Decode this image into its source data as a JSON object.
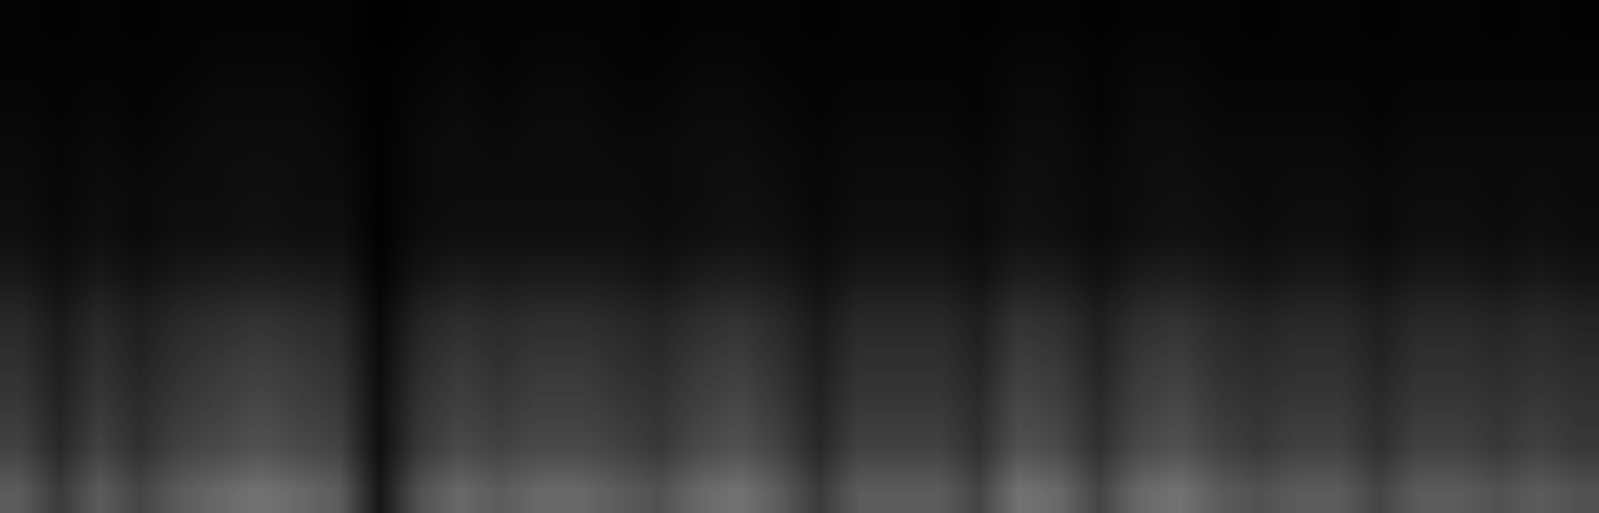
{
  "chart_data": {
    "type": "heatmap",
    "tick_labels": false,
    "color": "gray",
    "color_range": [
      0,
      100
    ],
    "cells": [
      [
        2,
        1,
        2,
        1,
        2,
        2,
        2,
        2,
        2,
        0,
        1,
        2,
        2,
        2,
        2,
        2,
        1,
        2,
        2,
        2,
        1,
        2,
        2,
        2,
        1,
        2,
        2,
        1,
        2,
        2,
        2,
        1,
        2,
        2,
        1,
        2,
        2,
        1,
        2,
        1
      ],
      [
        2,
        2,
        2,
        2,
        2,
        3,
        3,
        3,
        2,
        1,
        2,
        3,
        2,
        3,
        3,
        2,
        2,
        3,
        3,
        2,
        2,
        2,
        2,
        2,
        2,
        3,
        3,
        2,
        3,
        3,
        2,
        2,
        2,
        2,
        2,
        2,
        2,
        2,
        2,
        2
      ],
      [
        3,
        2,
        3,
        2,
        3,
        4,
        4,
        4,
        3,
        1,
        3,
        4,
        3,
        4,
        4,
        3,
        3,
        4,
        4,
        3,
        2,
        3,
        3,
        3,
        2,
        4,
        4,
        2,
        4,
        4,
        3,
        3,
        3,
        3,
        2,
        3,
        3,
        3,
        3,
        3
      ],
      [
        4,
        3,
        4,
        3,
        4,
        5,
        5,
        5,
        4,
        1,
        4,
        5,
        4,
        5,
        5,
        4,
        4,
        5,
        5,
        4,
        3,
        4,
        4,
        4,
        3,
        5,
        5,
        3,
        5,
        5,
        4,
        4,
        4,
        4,
        3,
        4,
        4,
        4,
        4,
        4
      ],
      [
        5,
        3,
        5,
        4,
        5,
        5,
        6,
        5,
        5,
        1,
        4,
        5,
        5,
        5,
        5,
        5,
        4,
        5,
        6,
        5,
        3,
        5,
        5,
        5,
        4,
        6,
        5,
        4,
        5,
        6,
        5,
        4,
        5,
        5,
        4,
        5,
        5,
        4,
        5,
        4
      ],
      [
        6,
        4,
        6,
        4,
        6,
        6,
        7,
        6,
        6,
        1,
        5,
        6,
        6,
        6,
        6,
        6,
        5,
        6,
        7,
        6,
        4,
        6,
        6,
        6,
        4,
        7,
        6,
        4,
        6,
        7,
        6,
        5,
        6,
        6,
        4,
        6,
        6,
        5,
        6,
        5
      ],
      [
        10,
        6,
        10,
        7,
        10,
        11,
        12,
        11,
        10,
        2,
        8,
        11,
        10,
        11,
        11,
        10,
        8,
        11,
        12,
        10,
        6,
        10,
        10,
        10,
        7,
        12,
        11,
        7,
        11,
        12,
        10,
        8,
        10,
        10,
        7,
        10,
        10,
        8,
        10,
        8
      ],
      [
        16,
        10,
        16,
        12,
        16,
        18,
        20,
        18,
        16,
        4,
        14,
        18,
        16,
        18,
        18,
        16,
        14,
        18,
        20,
        16,
        10,
        16,
        16,
        16,
        12,
        20,
        18,
        12,
        18,
        20,
        16,
        14,
        16,
        16,
        12,
        16,
        16,
        14,
        16,
        14
      ],
      [
        19,
        12,
        19,
        14,
        19,
        22,
        24,
        22,
        19,
        5,
        17,
        22,
        19,
        22,
        22,
        19,
        17,
        22,
        24,
        19,
        12,
        19,
        19,
        19,
        14,
        24,
        22,
        14,
        22,
        24,
        19,
        17,
        19,
        19,
        14,
        19,
        19,
        17,
        19,
        17
      ],
      [
        22,
        14,
        22,
        17,
        22,
        25,
        28,
        25,
        22,
        6,
        20,
        25,
        22,
        25,
        25,
        22,
        20,
        25,
        28,
        22,
        14,
        22,
        22,
        22,
        17,
        28,
        25,
        17,
        25,
        28,
        22,
        20,
        22,
        22,
        17,
        22,
        22,
        20,
        22,
        20
      ],
      [
        26,
        16,
        26,
        19,
        26,
        29,
        32,
        29,
        26,
        6,
        22,
        29,
        26,
        29,
        29,
        26,
        22,
        29,
        32,
        26,
        16,
        26,
        26,
        26,
        19,
        32,
        29,
        19,
        29,
        32,
        26,
        22,
        26,
        26,
        19,
        26,
        26,
        22,
        26,
        22
      ],
      [
        36,
        23,
        36,
        27,
        36,
        41,
        45,
        41,
        36,
        9,
        32,
        41,
        36,
        41,
        41,
        36,
        32,
        41,
        45,
        36,
        23,
        36,
        36,
        36,
        27,
        45,
        41,
        27,
        41,
        45,
        36,
        32,
        36,
        36,
        27,
        36,
        36,
        32,
        36,
        32
      ]
    ]
  }
}
